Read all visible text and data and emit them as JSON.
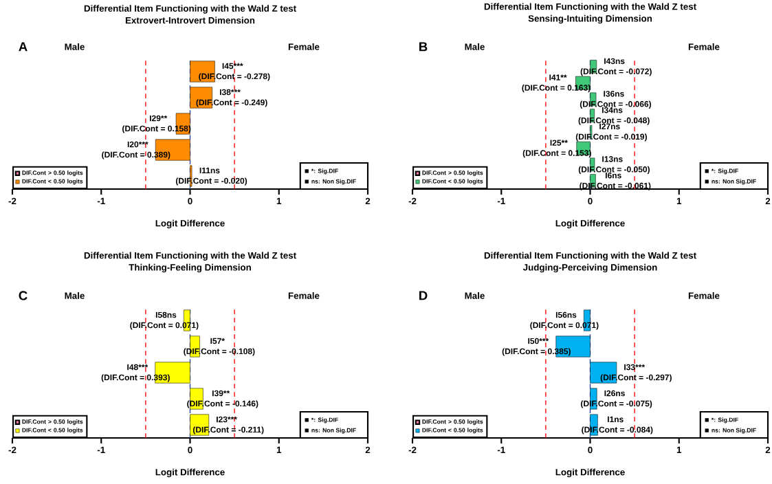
{
  "chart_data": [
    {
      "type": "bar",
      "orientation": "horizontal",
      "title": "Differential Item Functioning with the Wald Z test",
      "subtitle": "Extrovert-Introvert Dimension",
      "xlabel": "Logit Difference",
      "categories": [
        null,
        null,
        null,
        null,
        null
      ],
      "series": [
        {
          "name": "DIF.Cont > 0.50 logits",
          "color": "#ff80b0",
          "values": [
            null,
            null,
            null,
            null,
            null
          ]
        },
        {
          "name": "DIF.Cont < 0.50 logits",
          "color": "#ff8c00",
          "values": [
            0.278,
            0.249,
            -0.158,
            -0.389,
            0.02
          ],
          "value_labels": [
            "I45***",
            "I38***",
            "I29**",
            "I20***",
            "I11ns"
          ]
        }
      ],
      "xlim": [
        -2,
        2
      ],
      "xticks": [
        -2,
        -1,
        0,
        1,
        2
      ],
      "legend": "bottom left",
      "ref_lines": [
        {
          "axis": "x",
          "value": -0.5,
          "color": "#ff0000",
          "line_style": "dashed"
        },
        {
          "axis": "x",
          "value": 0,
          "color": "#2040a0",
          "line_style": "dashed"
        },
        {
          "axis": "x",
          "value": 0.5,
          "color": "#ff0000",
          "line_style": "dashed"
        }
      ],
      "annotations": [
        "A",
        "Male",
        "Female",
        "*: Sig.DIF",
        "ns: Non Sig.DIF",
        "(DIF.Cont = -0.278)",
        "(DIF.Cont = -0.249)",
        "(DIF.Cont = 0.158)",
        "(DIF.Cont = 0.389)",
        "(DIF.Cont = -0.020)"
      ]
    },
    {
      "type": "bar",
      "orientation": "horizontal",
      "title": "Differential Item Functioning with the Wald Z test",
      "subtitle": "Sensing-Intuiting Dimension",
      "xlabel": "Logit Difference",
      "categories": [
        null,
        null,
        null,
        null,
        null,
        null,
        null,
        null
      ],
      "series": [
        {
          "name": "DIF.Cont > 0.50 logits",
          "color": "#ff80b0",
          "values": [
            null,
            null,
            null,
            null,
            null,
            null,
            null,
            null
          ]
        },
        {
          "name": "DIF.Cont < 0.50 logits",
          "color": "#40c878",
          "values": [
            0.072,
            -0.163,
            0.066,
            0.048,
            0.019,
            -0.153,
            0.05,
            0.061
          ],
          "value_labels": [
            "I43ns",
            "I41**",
            "I36ns",
            "I34ns",
            "I27ns",
            "I25**",
            "I13ns",
            "I6ns"
          ]
        }
      ],
      "xlim": [
        -2,
        2
      ],
      "xticks": [
        -2,
        -1,
        0,
        1,
        2
      ],
      "legend": "bottom left",
      "ref_lines": [
        {
          "axis": "x",
          "value": -0.5,
          "color": "#ff0000",
          "line_style": "dashed"
        },
        {
          "axis": "x",
          "value": 0,
          "color": "#2040a0",
          "line_style": "dashed"
        },
        {
          "axis": "x",
          "value": 0.5,
          "color": "#ff0000",
          "line_style": "dashed"
        }
      ],
      "annotations": [
        "B",
        "Male",
        "Female",
        "*: Sig.DIF",
        "ns: Non Sig.DIF",
        "(DIF.Cont = -0.072)",
        "(DIF.Cont = 0.163)",
        "(DIF.Cont = -0.066)",
        "(DIF.Cont = -0.048)",
        "(DIF.Cont = -0.019)",
        "(DIF.Cont = 0.153)",
        "(DIF.Cont = -0.050)",
        "(DIF.Cont = -0.061)"
      ]
    },
    {
      "type": "bar",
      "orientation": "horizontal",
      "title": "Differential Item Functioning with the Wald Z test",
      "subtitle": "Thinking-Feeling Dimension",
      "xlabel": "Logit Difference",
      "categories": [
        null,
        null,
        null,
        null,
        null
      ],
      "series": [
        {
          "name": "DIF.Cont > 0.50 logits",
          "color": "#ff80b0",
          "values": [
            null,
            null,
            null,
            null,
            null
          ]
        },
        {
          "name": "DIF.Cont < 0.50 logits",
          "color": "#ffff00",
          "values": [
            -0.071,
            0.108,
            -0.393,
            0.146,
            0.211
          ],
          "value_labels": [
            "I58ns",
            "I57*",
            "I48***",
            "I39**",
            "I23***"
          ]
        }
      ],
      "xlim": [
        -2,
        2
      ],
      "xticks": [
        -2,
        -1,
        0,
        1,
        2
      ],
      "legend": "bottom left",
      "ref_lines": [
        {
          "axis": "x",
          "value": -0.5,
          "color": "#ff0000",
          "line_style": "dashed"
        },
        {
          "axis": "x",
          "value": 0,
          "color": "#2040a0",
          "line_style": "dashed"
        },
        {
          "axis": "x",
          "value": 0.5,
          "color": "#ff0000",
          "line_style": "dashed"
        }
      ],
      "annotations": [
        "C",
        "Male",
        "Female",
        "*: Sig.DIF",
        "ns: Non Sig.DIF",
        "(DIF.Cont = 0.071)",
        "(DIF.Cont = -0.108)",
        "(DIF.Cont = 0.393)",
        "(DIF.Cont = -0.146)",
        "(DIF.Cont = -0.211)"
      ]
    },
    {
      "type": "bar",
      "orientation": "horizontal",
      "title": "Differential Item Functioning with the Wald Z test",
      "subtitle": "Judging-Perceiving Dimension",
      "xlabel": "Logit Difference",
      "categories": [
        null,
        null,
        null,
        null,
        null
      ],
      "series": [
        {
          "name": "DIF.Cont > 0.50 logits",
          "color": "#ff80b0",
          "values": [
            null,
            null,
            null,
            null,
            null
          ]
        },
        {
          "name": "DIF.Cont < 0.50 logits",
          "color": "#00b0f0",
          "values": [
            -0.071,
            -0.385,
            0.297,
            0.075,
            0.084
          ],
          "value_labels": [
            "I56ns",
            "I50***",
            "I33***",
            "I26ns",
            "I1ns"
          ]
        }
      ],
      "xlim": [
        -2,
        2
      ],
      "xticks": [
        -2,
        -1,
        0,
        1,
        2
      ],
      "legend": "bottom left",
      "ref_lines": [
        {
          "axis": "x",
          "value": -0.5,
          "color": "#ff0000",
          "line_style": "dashed"
        },
        {
          "axis": "x",
          "value": 0,
          "color": "#2040a0",
          "line_style": "dashed"
        },
        {
          "axis": "x",
          "value": 0.5,
          "color": "#ff0000",
          "line_style": "dashed"
        }
      ],
      "annotations": [
        "D",
        "Male",
        "Female",
        "*: Sig.DIF",
        "ns: Non Sig.DIF",
        "(DIF.Cont = 0.071)",
        "(DIF.Cont = 0.385)",
        "(DIF.Cont = -0.297)",
        "(DIF.Cont = -0.075)",
        "(DIF.Cont = -0.084)"
      ]
    }
  ]
}
